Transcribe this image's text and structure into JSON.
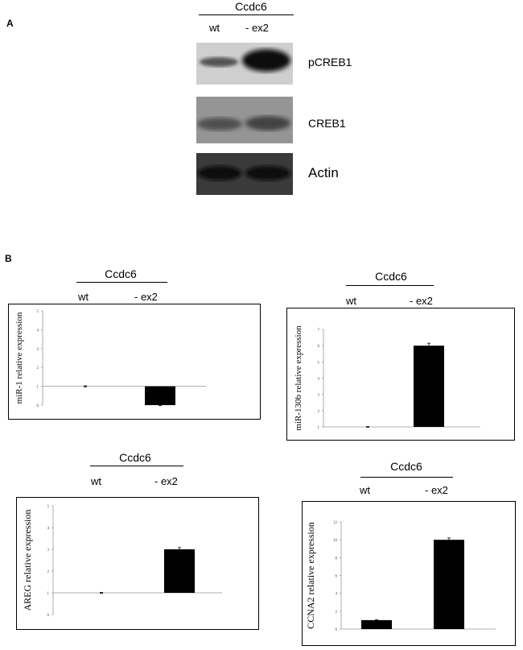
{
  "panel_a": {
    "letter": "A",
    "group_label": "Ccdc6",
    "conditions": [
      "wt",
      "- ex2"
    ],
    "blots": [
      {
        "label": "pCREB1",
        "band_color": "#161616",
        "background": "#cdcdcd"
      },
      {
        "label": "CREB1",
        "band_color": "#4a4a4a",
        "background": "#9a9a9a"
      },
      {
        "label": "Actin",
        "band_color": "#0e0e0e",
        "background": "#2a2a2a"
      }
    ]
  },
  "panel_b": {
    "letter": "B"
  },
  "chart_data": [
    {
      "type": "bar",
      "group_label": "Ccdc6",
      "categories": [
        "wt",
        "- ex2"
      ],
      "values": [
        1,
        0
      ],
      "error": [
        0.03,
        0.03
      ],
      "ylabel": "miR-1 relative expression",
      "ylim": [
        0,
        5
      ],
      "yticks": [
        "0",
        "1",
        "2",
        "3",
        "4",
        "5"
      ],
      "baseline": 1
    },
    {
      "type": "bar",
      "group_label": "Ccdc6",
      "categories": [
        "wt",
        "- ex2"
      ],
      "values": [
        1,
        6
      ],
      "error": [
        0.02,
        0.15
      ],
      "ylabel": "miR-130b relative expression",
      "ylim": [
        1,
        7
      ],
      "yticks": [
        "1",
        "2",
        "3",
        "4",
        "5",
        "6",
        "7"
      ],
      "baseline": 1
    },
    {
      "type": "bar",
      "group_label": "Ccdc6",
      "categories": [
        "wt",
        "- ex2"
      ],
      "values": [
        1,
        3
      ],
      "error": [
        0.02,
        0.08
      ],
      "ylabel": "AREG relative expression",
      "ylim": [
        0,
        5
      ],
      "yticks": [
        "0",
        "1",
        "2",
        "3",
        "4",
        "5"
      ],
      "baseline": 1
    },
    {
      "type": "bar",
      "group_label": "Ccdc6",
      "categories": [
        "wt",
        "- ex2"
      ],
      "values": [
        1,
        10
      ],
      "error": [
        0.05,
        0.2
      ],
      "ylabel": "CCNA2 relative expression",
      "ylim": [
        0,
        12
      ],
      "yticks": [
        "0",
        "2",
        "4",
        "6",
        "8",
        "10",
        "12"
      ],
      "baseline": 0
    }
  ]
}
